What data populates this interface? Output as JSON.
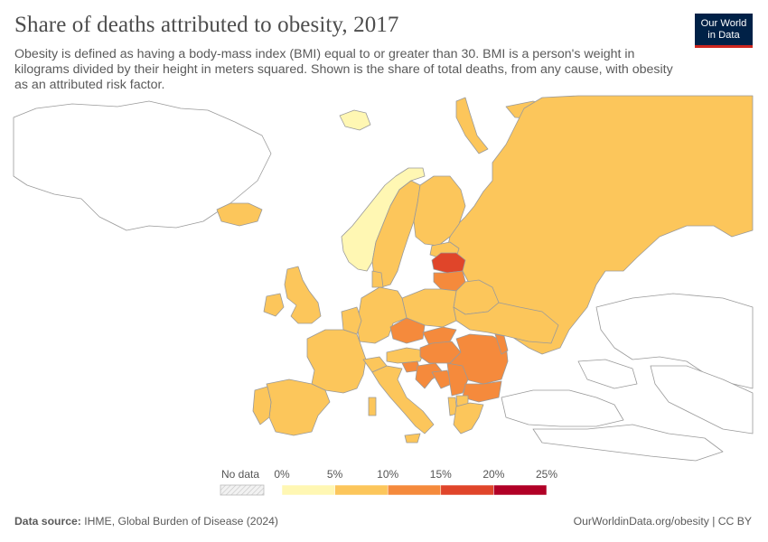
{
  "header": {
    "title": "Share of deaths attributed to obesity, 2017",
    "subtitle": "Obesity is defined as having a body-mass index (BMI) equal to or greater than 30. BMI is a person's weight in kilograms divided by their height in meters squared. Shown is the share of total deaths, from any cause, with obesity as an attributed risk factor.",
    "logo_line1": "Our World",
    "logo_line2": "in Data"
  },
  "colors": {
    "bin_0_5": "#fff7b3",
    "bin_5_10": "#fcc65b",
    "bin_10_15": "#f58a3c",
    "bin_15_20": "#e0452a",
    "bin_20_25": "#b10026",
    "no_data": "#e6e6e6",
    "land_outside": "#ffffff",
    "border": "#8a8a8a"
  },
  "legend": {
    "no_data_label": "No data",
    "ticks": [
      "0%",
      "5%",
      "10%",
      "15%",
      "20%",
      "25%"
    ]
  },
  "map_regions": [
    {
      "name": "Norway",
      "value_bin": "0-5%"
    },
    {
      "name": "Sweden",
      "value_bin": "5-10%"
    },
    {
      "name": "Finland",
      "value_bin": "5-10%"
    },
    {
      "name": "Russia",
      "value_bin": "5-10%"
    },
    {
      "name": "Latvia",
      "value_bin": "15-20%"
    },
    {
      "name": "Czechia",
      "value_bin": "10-15%"
    },
    {
      "name": "Hungary",
      "value_bin": "10-15%"
    },
    {
      "name": "Romania",
      "value_bin": "10-15%"
    }
  ],
  "footer": {
    "source_label": "Data source:",
    "source_text": "IHME, Global Burden of Disease (2024)",
    "url": "OurWorldinData.org/obesity | CC BY"
  }
}
